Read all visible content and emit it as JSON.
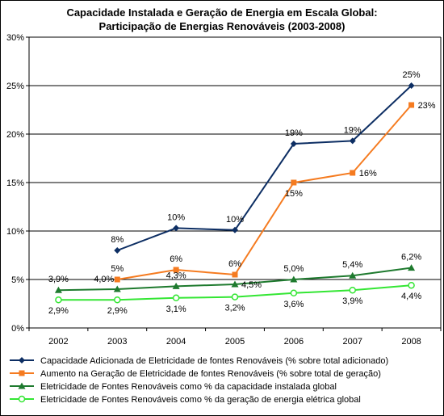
{
  "chart_data": {
    "type": "line",
    "title_lines": [
      "Capacidade Instalada e Geração de Energia em Escala Global:",
      "Participação de Energias Renováveis (2003-2008)"
    ],
    "categories": [
      "2002",
      "2003",
      "2004",
      "2005",
      "2006",
      "2007",
      "2008"
    ],
    "ylim": [
      0,
      30
    ],
    "yticks": [
      0,
      5,
      10,
      15,
      20,
      25,
      30
    ],
    "ytick_labels": [
      "0%",
      "5%",
      "10%",
      "15%",
      "20%",
      "25%",
      "30%"
    ],
    "grid": "horizontal",
    "legend_position": "bottom",
    "series": [
      {
        "name": "Capacidade Adicionada de Eletricidade de fontes Renováveis (% sobre total adicionado)",
        "color": "#0d2e63",
        "marker": "diamond",
        "values": [
          null,
          8,
          10.3,
          10.1,
          19,
          19.3,
          25
        ],
        "labels": [
          null,
          "8%",
          "10%",
          "10%",
          "19%",
          "19%",
          "25%"
        ],
        "label_pos": [
          null,
          "above",
          "above",
          "above",
          "above",
          "above",
          "above"
        ]
      },
      {
        "name": "Aumento na Geração de Eletricidade de fontes Renováveis (% sobre total de geração)",
        "color": "#f57b20",
        "marker": "square",
        "values": [
          null,
          5,
          6,
          5.5,
          15,
          16,
          23
        ],
        "labels": [
          null,
          "5%",
          "6%",
          "6%",
          "15%",
          "16%",
          "23%"
        ],
        "label_pos": [
          null,
          "above",
          "above",
          "above",
          "below",
          "right",
          "right"
        ]
      },
      {
        "name": "Eletricidade de Fontes Renováveis como % da capacidade instalada global",
        "color": "#1e7a2e",
        "marker": "triangle",
        "values": [
          3.9,
          4.0,
          4.3,
          4.5,
          5.0,
          5.4,
          6.2
        ],
        "labels": [
          "3,9%",
          "4,0%",
          "4,3%",
          "4,5%",
          "5,0%",
          "5,4%",
          "6,2%"
        ],
        "label_pos": [
          "above",
          "above-left",
          "above",
          "right",
          "above",
          "above",
          "above"
        ]
      },
      {
        "name": "Eletricidade de Fontes Renováveis como % da geração de energia elétrica global",
        "color": "#33e633",
        "marker": "circle",
        "values": [
          2.9,
          2.9,
          3.1,
          3.2,
          3.6,
          3.9,
          4.4
        ],
        "labels": [
          "2,9%",
          "2,9%",
          "3,1%",
          "3,2%",
          "3,6%",
          "3,9%",
          "4,4%"
        ],
        "label_pos": [
          "below",
          "below",
          "below",
          "below",
          "below",
          "below",
          "below"
        ]
      }
    ]
  }
}
